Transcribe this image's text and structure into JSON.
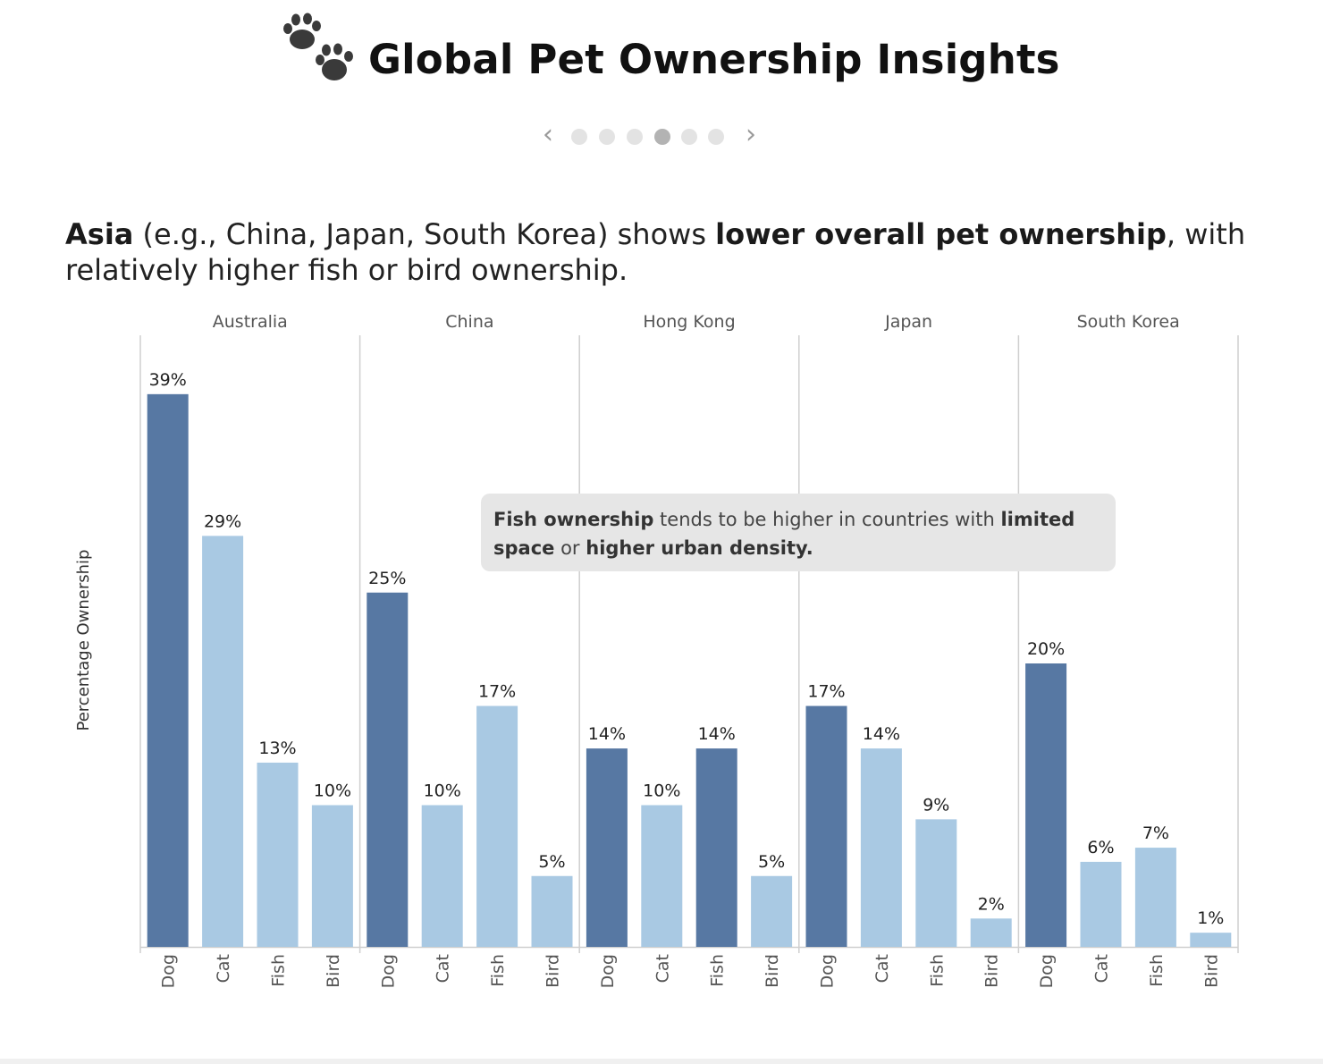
{
  "header": {
    "title": "Global Pet Ownership Insights",
    "icon": "paw-prints-icon"
  },
  "pager": {
    "prev_icon": "chevron-left-icon",
    "next_icon": "chevron-right-icon",
    "total": 6,
    "active_index": 3
  },
  "caption": {
    "part1_bold": "Asia",
    "part2": " (e.g., China, Japan, South Korea) shows ",
    "part3_bold": "lower overall pet ownership",
    "part4": ", with relatively higher fish or bird ownership."
  },
  "annotation": {
    "part1_bold": "Fish ownership",
    "part2": " tends to be higher in countries with ",
    "part3_bold": "limited space",
    "part4": " or ",
    "part5_bold": "higher urban density."
  },
  "colors": {
    "dog_bar": "#5778a3",
    "other_bar": "#a9c9e3",
    "highlight_bar": "#5778a3",
    "divider": "#cfcfcf",
    "tick_text": "#555555"
  },
  "chart_data": {
    "type": "bar",
    "ylabel": "Percentage Ownership",
    "ylim": [
      0,
      40
    ],
    "value_suffix": "%",
    "categories": [
      "Dog",
      "Cat",
      "Fish",
      "Bird"
    ],
    "panels": [
      {
        "name": "Australia",
        "values": [
          39,
          29,
          13,
          10
        ],
        "highlight": [
          true,
          false,
          false,
          false
        ]
      },
      {
        "name": "China",
        "values": [
          25,
          10,
          17,
          5
        ],
        "highlight": [
          true,
          false,
          false,
          false
        ]
      },
      {
        "name": "Hong Kong",
        "values": [
          14,
          10,
          14,
          5
        ],
        "highlight": [
          true,
          false,
          true,
          false
        ]
      },
      {
        "name": "Japan",
        "values": [
          17,
          14,
          9,
          2
        ],
        "highlight": [
          true,
          false,
          false,
          false
        ]
      },
      {
        "name": "South Korea",
        "values": [
          20,
          6,
          7,
          1
        ],
        "highlight": [
          true,
          false,
          false,
          false
        ]
      }
    ],
    "grid": false,
    "legend": "none"
  }
}
